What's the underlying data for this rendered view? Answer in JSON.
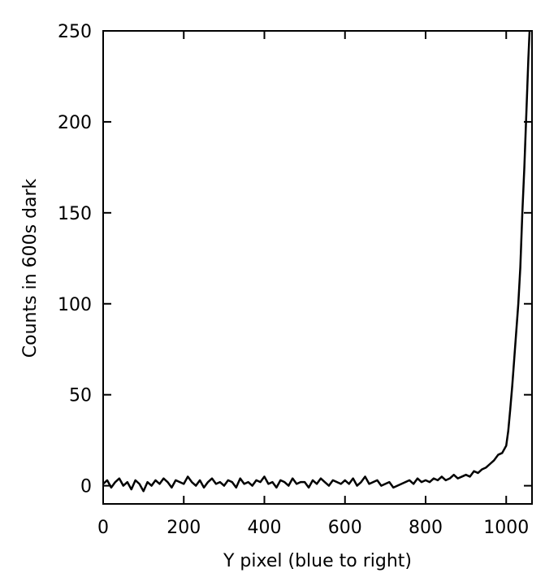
{
  "chart_data": {
    "type": "line",
    "x_label": "Y pixel (blue to right)",
    "y_label": "Counts in 600s dark",
    "xlim": [
      0,
      1064
    ],
    "ylim": [
      -10,
      250
    ],
    "xticks": [
      0,
      200,
      400,
      600,
      800,
      1000
    ],
    "yticks": [
      0,
      50,
      100,
      150,
      200,
      250
    ],
    "series": [
      {
        "color": "#000000",
        "x": [
          0,
          10,
          20,
          30,
          40,
          50,
          60,
          70,
          80,
          90,
          100,
          110,
          120,
          130,
          140,
          150,
          160,
          170,
          180,
          190,
          200,
          210,
          220,
          230,
          240,
          250,
          260,
          270,
          280,
          290,
          300,
          310,
          320,
          330,
          340,
          350,
          360,
          370,
          380,
          390,
          400,
          410,
          420,
          430,
          440,
          450,
          460,
          470,
          480,
          490,
          500,
          510,
          520,
          530,
          540,
          550,
          560,
          570,
          580,
          590,
          600,
          610,
          620,
          630,
          640,
          650,
          660,
          670,
          680,
          690,
          700,
          710,
          720,
          730,
          740,
          750,
          760,
          770,
          780,
          790,
          800,
          810,
          820,
          830,
          840,
          850,
          860,
          870,
          880,
          890,
          900,
          910,
          920,
          930,
          940,
          950,
          960,
          970,
          980,
          990,
          1000,
          1005,
          1010,
          1015,
          1020,
          1025,
          1030,
          1035,
          1040,
          1045,
          1050,
          1055,
          1058
        ],
        "values": [
          1,
          3,
          -1,
          2,
          4,
          0,
          2,
          -2,
          3,
          1,
          -3,
          2,
          0,
          3,
          1,
          4,
          2,
          -1,
          3,
          2,
          1,
          5,
          2,
          0,
          3,
          -1,
          2,
          4,
          1,
          2,
          0,
          3,
          2,
          -1,
          4,
          1,
          2,
          0,
          3,
          2,
          5,
          1,
          2,
          -1,
          3,
          2,
          0,
          4,
          1,
          2,
          2,
          -1,
          3,
          1,
          4,
          2,
          0,
          3,
          2,
          1,
          3,
          1,
          4,
          0,
          2,
          5,
          1,
          2,
          3,
          0,
          1,
          2,
          -1,
          0,
          1,
          2,
          3,
          1,
          4,
          2,
          3,
          2,
          4,
          3,
          5,
          3,
          4,
          6,
          4,
          5,
          6,
          5,
          8,
          7,
          9,
          10,
          12,
          14,
          17,
          18,
          22,
          30,
          42,
          55,
          70,
          85,
          100,
          120,
          150,
          175,
          205,
          235,
          250
        ]
      }
    ]
  }
}
